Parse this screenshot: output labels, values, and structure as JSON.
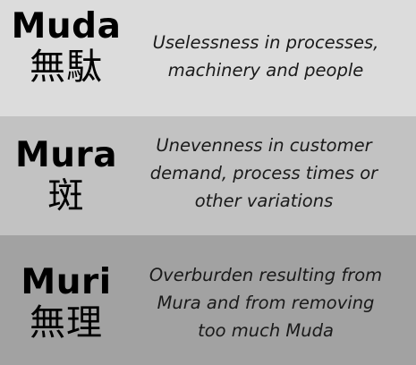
{
  "rows": [
    {
      "term": "Muda",
      "kanji": "無駄",
      "description": [
        "Uselessness in processes,",
        "machinery and people"
      ]
    },
    {
      "term": "Mura",
      "kanji": "斑",
      "description": [
        "Unevenness in customer",
        "demand, process times or",
        "other variations"
      ]
    },
    {
      "term": "Muri",
      "kanji": "無理",
      "description": [
        "Overburden resulting from",
        "Mura and from removing",
        "too much Muda"
      ]
    }
  ],
  "colors": {
    "muda_band": "#dcdcdc",
    "mura_band": "#c2c2c2",
    "muri_band": "#a2a2a2"
  }
}
